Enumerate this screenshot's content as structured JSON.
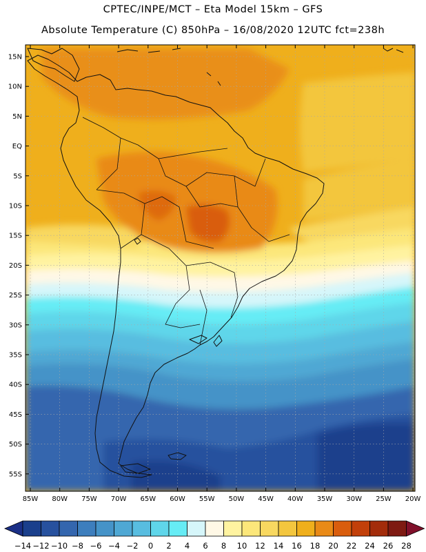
{
  "header": {
    "line1": "CPTEC/INPE/MCT –  Eta Model 15km – GFS",
    "line2": "Absolute Temperature (C) 850hPa – 16/08/2020 12UTC fct=238h"
  },
  "map": {
    "region": "South America",
    "lat_labels": [
      "15N",
      "10N",
      "5N",
      "EQ",
      "5S",
      "10S",
      "15S",
      "20S",
      "25S",
      "30S",
      "35S",
      "40S",
      "45S",
      "50S",
      "55S"
    ],
    "lon_labels": [
      "85W",
      "80W",
      "75W",
      "70W",
      "65W",
      "60W",
      "55W",
      "50W",
      "45W",
      "40W",
      "35W",
      "30W",
      "25W",
      "20W"
    ]
  },
  "colorbar": {
    "labels": [
      "-14",
      "-12",
      "-10",
      "-8",
      "-6",
      "-4",
      "-2",
      "0",
      "2",
      "4",
      "6",
      "8",
      "10",
      "12",
      "14",
      "16",
      "18",
      "20",
      "22",
      "24",
      "26",
      "28"
    ],
    "colors": [
      "#1a3f8c",
      "#27519e",
      "#3466ae",
      "#3d7ebd",
      "#4593c8",
      "#4fa8d4",
      "#58bde0",
      "#5fd6ea",
      "#66ecf5",
      "#d6f6fa",
      "#fff8e6",
      "#fff3a0",
      "#fce77a",
      "#f8d860",
      "#f3c63e",
      "#efaf1c",
      "#e98a17",
      "#d95d0d",
      "#c2400a",
      "#a32c0b",
      "#7e1a12"
    ],
    "under_color": "#1a2f86",
    "over_color": "#80102a"
  }
}
